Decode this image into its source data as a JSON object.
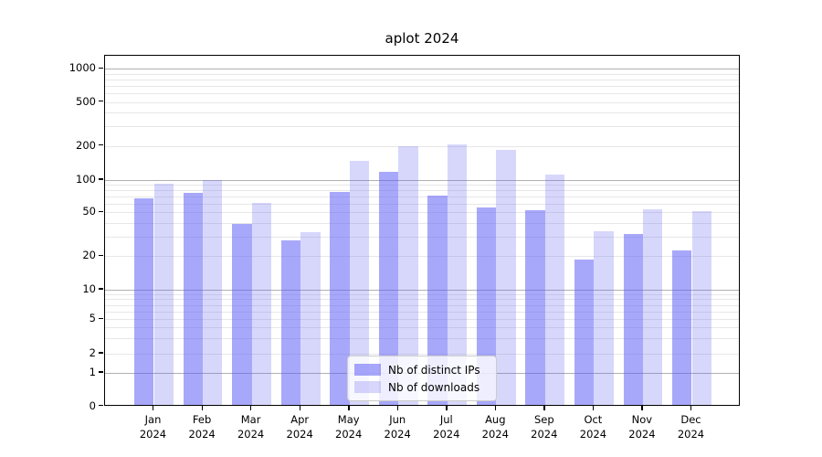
{
  "chart_data": {
    "type": "bar",
    "title": "aplot 2024",
    "categories": [
      "Jan 2024",
      "Feb 2024",
      "Mar 2024",
      "Apr 2024",
      "May 2024",
      "Jun 2024",
      "Jul 2024",
      "Aug 2024",
      "Sep 2024",
      "Oct 2024",
      "Nov 2024",
      "Dec 2024"
    ],
    "series": [
      {
        "name": "Nb of distinct IPs",
        "key": "ips",
        "color": "rgba(97,97,245,0.55)",
        "values": [
          65,
          73,
          38,
          27,
          75,
          114,
          70,
          54,
          51,
          18,
          31,
          22
        ]
      },
      {
        "name": "Nb of downloads",
        "key": "downloads",
        "color": "rgba(97,97,245,0.25)",
        "values": [
          90,
          96,
          60,
          32,
          142,
          193,
          200,
          178,
          108,
          33,
          52,
          50
        ]
      }
    ],
    "xlabel": "",
    "ylabel": "",
    "yscale": "symlog",
    "yticks": [
      0,
      1,
      2,
      5,
      10,
      20,
      50,
      100,
      200,
      500,
      1000
    ],
    "ylim": [
      0,
      1300
    ],
    "grid": "on",
    "legend_position": "lower center"
  },
  "colors": {
    "bar_base": "#6161f5",
    "grid_major": "#b0b0b0",
    "grid_minor": "#e7e7e7",
    "axis": "#000000",
    "legend_border": "#cccccc",
    "legend_bg": "rgba(255,255,255,0.8)"
  }
}
